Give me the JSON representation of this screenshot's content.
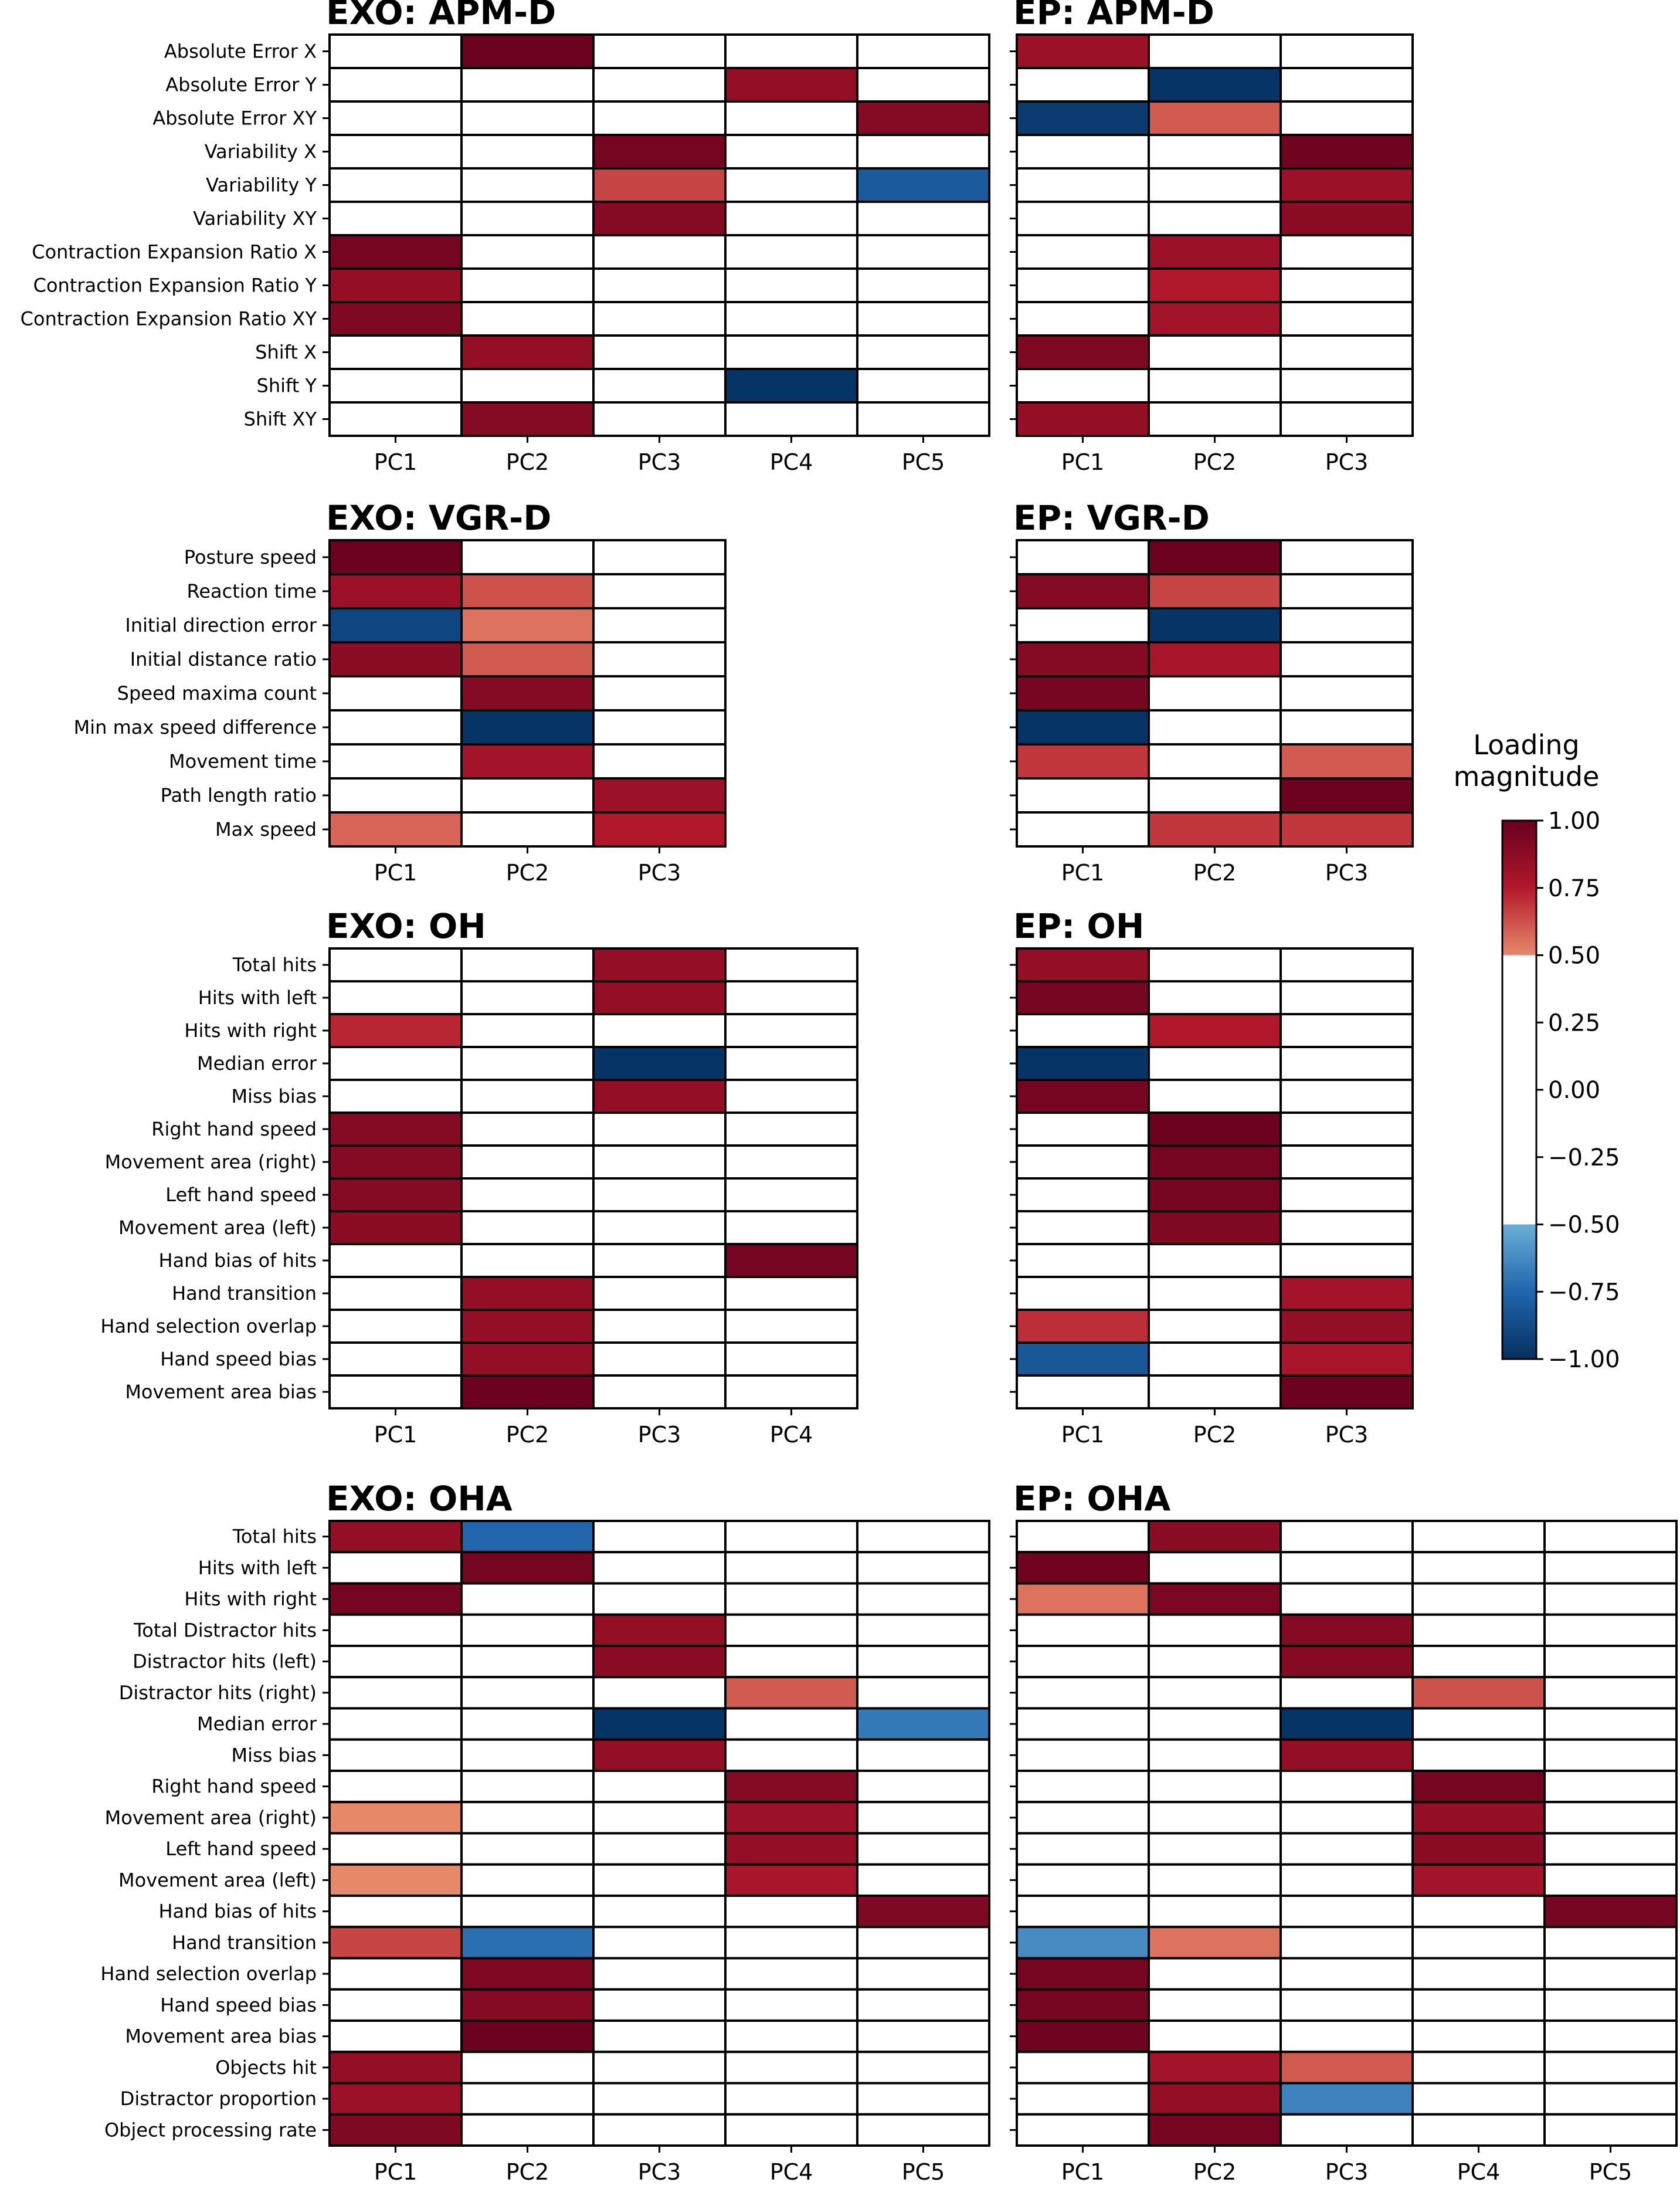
{
  "chart_data": {
    "type": "heatmap",
    "colorbar": {
      "title": [
        "Loading",
        "magnitude"
      ],
      "ticks": [
        "1.00",
        "0.75",
        "0.50",
        "0.25",
        "0.00",
        "−0.25",
        "−0.50",
        "−0.75",
        "−1.00"
      ],
      "range": [
        -1,
        1
      ],
      "blank_threshold": 0.5
    },
    "panels": [
      {
        "title": "EXO: APM-D",
        "rows": [
          "Absolute Error X",
          "Absolute Error Y",
          "Absolute Error XY",
          "Variability X",
          "Variability Y",
          "Variability XY",
          "Contraction Expansion Ratio X",
          "Contraction Expansion Ratio Y",
          "Contraction Expansion Ratio XY",
          "Shift X",
          "Shift Y",
          "Shift XY"
        ],
        "columns": [
          "PC1",
          "PC2",
          "PC3",
          "PC4",
          "PC5"
        ],
        "values": [
          [
            0,
            0.98,
            0,
            0,
            0
          ],
          [
            0,
            0,
            0,
            0.85,
            0
          ],
          [
            0,
            0,
            0,
            0,
            0.9
          ],
          [
            0,
            0,
            0.95,
            0,
            0
          ],
          [
            0,
            0,
            0.65,
            0,
            -0.8
          ],
          [
            0,
            0,
            0.9,
            0,
            0
          ],
          [
            0.95,
            0,
            0,
            0,
            0
          ],
          [
            0.85,
            0,
            0,
            0,
            0
          ],
          [
            0.92,
            0,
            0,
            0,
            0
          ],
          [
            0,
            0.85,
            0,
            0,
            0
          ],
          [
            0,
            0,
            0,
            -0.98,
            0
          ],
          [
            0,
            0.9,
            0,
            0,
            0
          ]
        ]
      },
      {
        "title": "EP: APM-D",
        "rows": [
          "Absolute Error X",
          "Absolute Error Y",
          "Absolute Error XY",
          "Variability X",
          "Variability Y",
          "Variability XY",
          "Contraction Expansion Ratio X",
          "Contraction Expansion Ratio Y",
          "Contraction Expansion Ratio XY",
          "Shift X",
          "Shift Y",
          "Shift XY"
        ],
        "columns": [
          "PC1",
          "PC2",
          "PC3"
        ],
        "values": [
          [
            0.82,
            0,
            0
          ],
          [
            0,
            -0.98,
            0
          ],
          [
            -0.95,
            0.6,
            0
          ],
          [
            0,
            0,
            0.97
          ],
          [
            0,
            0,
            0.82
          ],
          [
            0,
            0,
            0.88
          ],
          [
            0,
            0.82,
            0
          ],
          [
            0,
            0.75,
            0
          ],
          [
            0,
            0.8,
            0
          ],
          [
            0.92,
            0,
            0
          ],
          [
            0,
            0,
            0
          ],
          [
            0.85,
            0,
            0
          ]
        ]
      },
      {
        "title": "EXO: VGR-D",
        "rows": [
          "Posture speed",
          "Reaction time",
          "Initial direction error",
          "Initial distance ratio",
          "Speed maxima count",
          "Min max speed difference",
          "Movement time",
          "Path length ratio",
          "Max speed"
        ],
        "columns": [
          "PC1",
          "PC2",
          "PC3"
        ],
        "values": [
          [
            0.98,
            0,
            0
          ],
          [
            0.82,
            0.62,
            0
          ],
          [
            -0.9,
            0.55,
            0
          ],
          [
            0.88,
            0.6,
            0
          ],
          [
            0,
            0.9,
            0
          ],
          [
            0,
            -0.98,
            0
          ],
          [
            0,
            0.8,
            0
          ],
          [
            0,
            0,
            0.82
          ],
          [
            0.58,
            0,
            0.75
          ]
        ]
      },
      {
        "title": "EP: VGR-D",
        "rows": [
          "Posture speed",
          "Reaction time",
          "Initial direction error",
          "Initial distance ratio",
          "Speed maxima count",
          "Min max speed difference",
          "Movement time",
          "Path length ratio",
          "Max speed"
        ],
        "columns": [
          "PC1",
          "PC2",
          "PC3"
        ],
        "values": [
          [
            0,
            0.98,
            0
          ],
          [
            0.9,
            0.65,
            0
          ],
          [
            0,
            -0.98,
            0
          ],
          [
            0.9,
            0.78,
            0
          ],
          [
            0.95,
            0,
            0
          ],
          [
            -0.98,
            0,
            0
          ],
          [
            0.68,
            0,
            0.6
          ],
          [
            0,
            0,
            0.98
          ],
          [
            0,
            0.68,
            0.68
          ]
        ]
      },
      {
        "title": "EXO: OH",
        "rows": [
          "Total hits",
          "Hits with left",
          "Hits with right",
          "Median error",
          "Miss bias",
          "Right hand speed",
          "Movement area (right)",
          "Left hand speed",
          "Movement area (left)",
          "Hand bias of hits",
          "Hand transition",
          "Hand selection overlap",
          "Hand speed bias",
          "Movement area bias"
        ],
        "columns": [
          "PC1",
          "PC2",
          "PC3",
          "PC4"
        ],
        "values": [
          [
            0,
            0,
            0.85,
            0
          ],
          [
            0,
            0,
            0.85,
            0
          ],
          [
            0.72,
            0,
            0,
            0
          ],
          [
            0,
            0,
            -0.98,
            0
          ],
          [
            0,
            0,
            0.85,
            0
          ],
          [
            0.9,
            0,
            0,
            0
          ],
          [
            0.9,
            0,
            0,
            0
          ],
          [
            0.9,
            0,
            0,
            0
          ],
          [
            0.88,
            0,
            0,
            0
          ],
          [
            0,
            0,
            0,
            0.95
          ],
          [
            0,
            0.85,
            0,
            0
          ],
          [
            0,
            0.85,
            0,
            0
          ],
          [
            0,
            0.85,
            0,
            0
          ],
          [
            0,
            0.98,
            0,
            0
          ]
        ]
      },
      {
        "title": "EP: OH",
        "rows": [
          "Total hits",
          "Hits with left",
          "Hits with right",
          "Median error",
          "Miss bias",
          "Right hand speed",
          "Movement area (right)",
          "Left hand speed",
          "Movement area (left)",
          "Hand bias of hits",
          "Hand transition",
          "Hand selection overlap",
          "Hand speed bias",
          "Movement area bias"
        ],
        "columns": [
          "PC1",
          "PC2",
          "PC3"
        ],
        "values": [
          [
            0.85,
            0,
            0
          ],
          [
            0.95,
            0,
            0
          ],
          [
            0,
            0.75,
            0
          ],
          [
            -0.98,
            0,
            0
          ],
          [
            0.95,
            0,
            0
          ],
          [
            0,
            0.98,
            0
          ],
          [
            0,
            0.95,
            0
          ],
          [
            0,
            0.95,
            0
          ],
          [
            0,
            0.92,
            0
          ],
          [
            0,
            0,
            0
          ],
          [
            0,
            0,
            0.8
          ],
          [
            0.7,
            0,
            0.85
          ],
          [
            -0.82,
            0,
            0.78
          ],
          [
            0,
            0,
            0.98
          ]
        ]
      },
      {
        "title": "EXO: OHA",
        "rows": [
          "Total hits",
          "Hits with left",
          "Hits with right",
          "Total Distractor hits",
          "Distractor hits (left)",
          "Distractor hits (right)",
          "Median error",
          "Miss bias",
          "Right hand speed",
          "Movement area (right)",
          "Left hand speed",
          "Movement area (left)",
          "Hand bias of hits",
          "Hand transition",
          "Hand selection overlap",
          "Hand speed bias",
          "Movement area bias",
          "Objects hit",
          "Distractor proportion",
          "Object processing rate"
        ],
        "columns": [
          "PC1",
          "PC2",
          "PC3",
          "PC4",
          "PC5"
        ],
        "values": [
          [
            0.85,
            -0.75,
            0,
            0,
            0
          ],
          [
            0,
            0.95,
            0,
            0,
            0
          ],
          [
            0.95,
            0,
            0,
            0,
            0
          ],
          [
            0,
            0,
            0.85,
            0,
            0
          ],
          [
            0,
            0,
            0.88,
            0,
            0
          ],
          [
            0,
            0,
            0,
            0.6,
            0
          ],
          [
            0,
            0,
            -0.98,
            0,
            -0.68
          ],
          [
            0,
            0,
            0.85,
            0,
            0
          ],
          [
            0,
            0,
            0,
            0.9,
            0
          ],
          [
            0.5,
            0,
            0,
            0.82,
            0
          ],
          [
            0,
            0,
            0,
            0.85,
            0
          ],
          [
            0.5,
            0,
            0,
            0.78,
            0
          ],
          [
            0,
            0,
            0,
            0,
            0.92
          ],
          [
            0.65,
            -0.72,
            0,
            0,
            0
          ],
          [
            0,
            0.92,
            0,
            0,
            0
          ],
          [
            0,
            0.9,
            0,
            0,
            0
          ],
          [
            0,
            0.98,
            0,
            0,
            0
          ],
          [
            0.85,
            0,
            0,
            0,
            0
          ],
          [
            0.82,
            0,
            0,
            0,
            0
          ],
          [
            0.92,
            0,
            0,
            0,
            0
          ]
        ]
      },
      {
        "title": "EP: OHA",
        "rows": [
          "Total hits",
          "Hits with left",
          "Hits with right",
          "Total Distractor hits",
          "Distractor hits (left)",
          "Distractor hits (right)",
          "Median error",
          "Miss bias",
          "Right hand speed",
          "Movement area (right)",
          "Left hand speed",
          "Movement area (left)",
          "Hand bias of hits",
          "Hand transition",
          "Hand selection overlap",
          "Hand speed bias",
          "Movement area bias",
          "Objects hit",
          "Distractor proportion",
          "Object processing rate"
        ],
        "columns": [
          "PC1",
          "PC2",
          "PC3",
          "PC4",
          "PC5"
        ],
        "values": [
          [
            0,
            0.88,
            0,
            0,
            0
          ],
          [
            0.97,
            0,
            0,
            0,
            0
          ],
          [
            0.55,
            0.93,
            0,
            0,
            0
          ],
          [
            0,
            0,
            0.9,
            0,
            0
          ],
          [
            0,
            0,
            0.9,
            0,
            0
          ],
          [
            0,
            0,
            0,
            0.62,
            0
          ],
          [
            0,
            0,
            -0.98,
            0,
            0
          ],
          [
            0,
            0,
            0.85,
            0,
            0
          ],
          [
            0,
            0,
            0,
            0.95,
            0
          ],
          [
            0,
            0,
            0,
            0.85,
            0
          ],
          [
            0,
            0,
            0,
            0.88,
            0
          ],
          [
            0,
            0,
            0,
            0.8,
            0
          ],
          [
            0,
            0,
            0,
            0,
            0.95
          ],
          [
            -0.62,
            0.55,
            0,
            0,
            0
          ],
          [
            0.95,
            0,
            0,
            0,
            0
          ],
          [
            0.95,
            0,
            0,
            0,
            0
          ],
          [
            0.97,
            0,
            0,
            0,
            0
          ],
          [
            0,
            0.8,
            0.6,
            0,
            0
          ],
          [
            0,
            0.85,
            -0.65,
            0,
            0
          ],
          [
            0,
            0.95,
            0,
            0,
            0
          ]
        ]
      }
    ]
  }
}
